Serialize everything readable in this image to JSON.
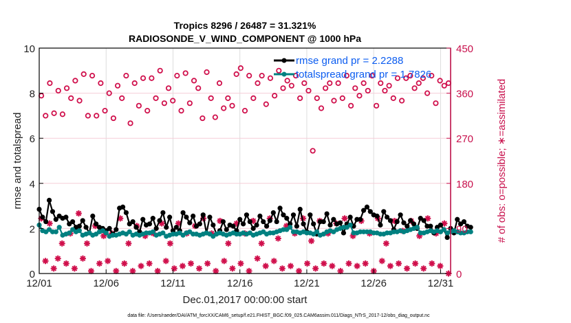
{
  "chart_data": {
    "type": "line",
    "title": "Tropics 8296 / 26487 = 31.321%",
    "subtitle": "RADIOSONDE_V_WIND_COMPONENT @ 1000 hPa",
    "xlabel": "Dec.01,2017 00:00:00 start",
    "ylabel": "rmse and totalspread",
    "y2label": "# of obs: o=possible; ∗=assimilated",
    "footnote": "data file: /Users/raeder/DAI/ATM_forcXX/CAM6_setup/f.e21.FHIST_BGC.f09_025.CAM6assim.011/Diags_NTrS_2017-12/obs_diag_output.nc",
    "xlim": [
      0,
      30.75
    ],
    "ylim": [
      0,
      10
    ],
    "y2lim": [
      0,
      450
    ],
    "x_tick_values": [
      0,
      5,
      10,
      15,
      20,
      25,
      30
    ],
    "x_tick_labels": [
      "12/01",
      "12/06",
      "12/11",
      "12/16",
      "12/21",
      "12/26",
      "12/31"
    ],
    "y_tick_labels": [
      "0",
      "2",
      "4",
      "6",
      "8",
      "10"
    ],
    "y2_tick_labels": [
      "0",
      "90",
      "180",
      "270",
      "360",
      "450"
    ],
    "grid": true,
    "legend_position": "top-right",
    "x_step_days": 0.25,
    "series": [
      {
        "name": "rmse grand pr = 2.2288",
        "axis": "left",
        "color": "#000000",
        "style": "line-dot",
        "values": [
          2.85,
          2.5,
          2.3,
          3.25,
          2.75,
          2.4,
          2.55,
          2.45,
          2.5,
          2.2,
          2.3,
          2.05,
          2.1,
          2.35,
          2.05,
          1.8,
          2.55,
          2.2,
          2.05,
          2.0,
          1.9,
          2.0,
          1.75,
          1.95,
          2.9,
          2.95,
          2.7,
          2.2,
          2.3,
          2.05,
          1.85,
          2.4,
          2.15,
          2.2,
          2.45,
          2.0,
          2.35,
          2.7,
          2.05,
          2.5,
          1.9,
          2.05,
          1.9,
          2.7,
          2.5,
          2.25,
          2.55,
          2.1,
          2.2,
          2.6,
          1.8,
          2.5,
          2.15,
          1.75,
          1.9,
          2.3,
          1.95,
          2.15,
          2.1,
          1.9,
          2.4,
          2.2,
          2.6,
          2.3,
          2.0,
          2.15,
          2.55,
          2.3,
          2.1,
          2.35,
          2.7,
          2.3,
          2.9,
          2.6,
          2.45,
          2.2,
          2.6,
          2.1,
          2.85,
          2.2,
          1.85,
          2.6,
          2.2,
          1.75,
          2.3,
          2.3,
          2.65,
          2.15,
          2.4,
          2.2,
          2.25,
          1.8,
          2.2,
          2.5,
          2.1,
          2.4,
          2.4,
          2.8,
          2.95,
          2.75,
          2.6,
          2.55,
          2.15,
          2.75,
          2.5,
          2.35,
          1.95,
          2.3,
          2.6,
          2.25,
          2.1,
          2.35,
          2.2,
          2.0,
          2.45,
          2.35,
          2.1,
          2.1,
          1.8,
          2.05,
          2.15,
          1.95,
          1.6,
          2.0,
          1.8,
          2.4,
          2.2,
          2.3,
          2.1,
          2.05
        ],
        "note": "approximate readings; 124 points at 6-hourly steps"
      },
      {
        "name": "totalspread grand pr = 1.7826",
        "axis": "left",
        "color": "#008080",
        "style": "line-dot",
        "values": [
          2.15,
          1.9,
          1.85,
          1.95,
          1.85,
          1.85,
          2.05,
          1.7,
          1.75,
          1.8,
          1.95,
          1.85,
          1.9,
          1.7,
          1.75,
          1.8,
          1.7,
          1.75,
          1.85,
          1.9,
          1.8,
          1.65,
          1.7,
          1.7,
          1.75,
          1.8,
          1.75,
          1.85,
          1.7,
          1.75,
          1.7,
          1.75,
          1.8,
          1.8,
          1.85,
          1.7,
          1.75,
          1.8,
          1.65,
          1.7,
          1.75,
          1.75,
          1.8,
          1.7,
          1.8,
          1.85,
          1.75,
          1.75,
          1.7,
          1.75,
          1.8,
          1.75,
          1.65,
          1.75,
          1.8,
          1.75,
          1.7,
          1.75,
          1.8,
          1.75,
          1.75,
          1.8,
          1.75,
          1.8,
          1.7,
          1.75,
          1.8,
          1.85,
          1.75,
          1.8,
          1.8,
          1.85,
          1.9,
          1.95,
          1.95,
          2.05,
          1.85,
          1.85,
          1.8,
          1.85,
          1.8,
          1.8,
          1.75,
          1.85,
          1.7,
          1.75,
          1.85,
          1.9,
          1.85,
          1.95,
          2.0,
          2.05,
          2.05,
          2.15,
          1.8,
          1.8,
          1.85,
          1.85,
          1.85,
          1.85,
          1.8,
          1.8,
          1.75,
          1.75,
          1.8,
          1.8,
          1.85,
          1.85,
          1.9,
          1.85,
          1.9,
          1.95,
          2.0,
          2.05,
          1.8,
          1.8,
          1.85,
          1.9,
          1.85,
          1.9,
          1.85,
          1.95,
          1.8,
          1.85,
          1.9,
          1.85,
          1.8,
          1.8,
          1.85,
          1.85
        ],
        "note": "approximate readings"
      },
      {
        "name": "# obs possible",
        "axis": "right",
        "color": "#d0104c",
        "style": "open-circle",
        "values": [
          355,
          315,
          380,
          320,
          365,
          318,
          370,
          350,
          385,
          345,
          398,
          315,
          395,
          315,
          380,
          325,
          360,
          310,
          375,
          350,
          395,
          300,
          380,
          335,
          390,
          325,
          390,
          350,
          405,
          340,
          370,
          345,
          395,
          325,
          400,
          340,
          385,
          370,
          310,
          402,
          350,
          312,
          380,
          330,
          350,
          335,
          398,
          410,
          325,
          395,
          350,
          380,
          395,
          338,
          390,
          355,
          405,
          370,
          385,
          375,
          395,
          350,
          380,
          365,
          245,
          350,
          330,
          370,
          380,
          345,
          380,
          350,
          395,
          335,
          370,
          355,
          380,
          365,
          395,
          335,
          380,
          365,
          375,
          350,
          390,
          345,
          390,
          395,
          370,
          380,
          390,
          360,
          395,
          340,
          385,
          375,
          380
        ],
        "note": "approximate; plotted every ~1.25 obs steps, values on right axis"
      },
      {
        "name": "# obs assimilated",
        "axis": "right",
        "color": "#d0104c",
        "style": "asterisk",
        "values": [
          110,
          25,
          100,
          10,
          30,
          60,
          20,
          80,
          10,
          120,
          30,
          60,
          5,
          95,
          20,
          75,
          25,
          80,
          5,
          110,
          20,
          60,
          5,
          95,
          15,
          75,
          20,
          80,
          5,
          100,
          25,
          60,
          10,
          100,
          15,
          80,
          20,
          95,
          10,
          110,
          20,
          80,
          5,
          105,
          25,
          60,
          10,
          100,
          20,
          80,
          5,
          105,
          30,
          60,
          15,
          110,
          25,
          70,
          10,
          95,
          15,
          80,
          5,
          110,
          20,
          65,
          10,
          105,
          20,
          80,
          15,
          100,
          5,
          110,
          20,
          75,
          15,
          105,
          20,
          80,
          5,
          110,
          25,
          60,
          15,
          105,
          20,
          85,
          10,
          105,
          20,
          75,
          10,
          110,
          20,
          80,
          15,
          100,
          0
        ],
        "note": "approximate; values on right axis"
      }
    ]
  }
}
